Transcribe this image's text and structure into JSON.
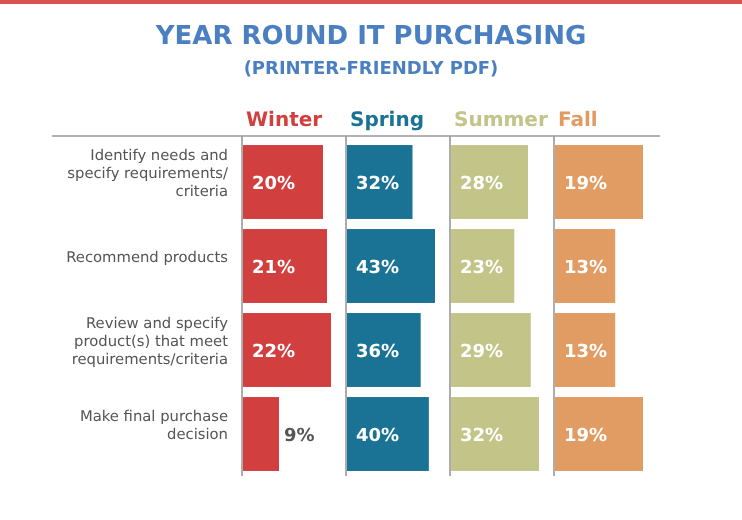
{
  "chart_data": [
    {
      "type": "bar",
      "title": "YEAR ROUND IT PURCHASING",
      "subtitle": "(PRINTER-FRIENDLY PDF)",
      "orientation": "horizontal",
      "categories": [
        "Identify needs and specify requirements/criteria",
        "Recommend products",
        "Review and specify product(s) that meet requirements/criteria",
        "Make final purchase decision"
      ],
      "series": [
        {
          "name": "Winter",
          "color": "#d13f3f",
          "values": [
            20,
            21,
            22,
            9
          ],
          "value_labels": [
            "20%",
            "21%",
            "22%",
            "9%"
          ]
        }
      ]
    },
    {
      "type": "bar",
      "orientation": "horizontal",
      "categories": [
        null,
        null,
        null,
        null
      ],
      "series": [
        {
          "name": "Spring",
          "color": "#1a7394",
          "values": [
            32,
            43,
            36,
            40
          ],
          "value_labels": [
            "32%",
            "43%",
            "36%",
            "40%"
          ]
        }
      ]
    },
    {
      "type": "bar",
      "orientation": "horizontal",
      "categories": [
        null,
        null,
        null,
        null
      ],
      "series": [
        {
          "name": "Summer",
          "color": "#c2c488",
          "values": [
            28,
            23,
            29,
            32
          ],
          "value_labels": [
            "28%",
            "23%",
            "29%",
            "32%"
          ]
        }
      ]
    },
    {
      "type": "bar",
      "orientation": "horizontal",
      "categories": [
        null,
        null,
        null,
        null
      ],
      "series": [
        {
          "name": "Fall",
          "color": "#e09c62",
          "values": [
            19,
            13,
            13,
            19
          ],
          "value_labels": [
            "19%",
            "13%",
            "13%",
            "19%"
          ]
        }
      ]
    }
  ]
}
